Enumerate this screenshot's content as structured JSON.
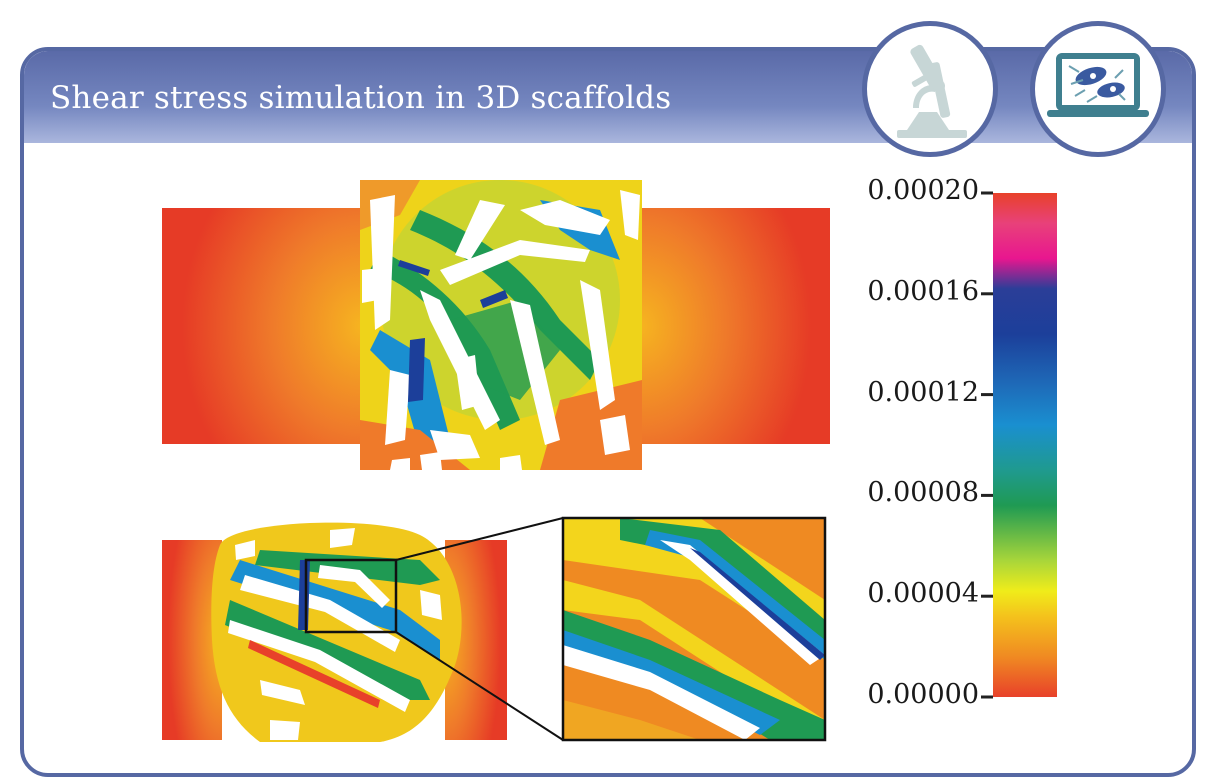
{
  "header": {
    "title": "Shear stress simulation in 3D scaffolds"
  },
  "badges": [
    {
      "icon": "microscope-icon",
      "color": "#c7d6d6"
    },
    {
      "icon": "laptop-cells-icon",
      "color": "#3f7f8f"
    }
  ],
  "colorbar": {
    "ticks": [
      {
        "label": "0.00020",
        "value": 0.0002
      },
      {
        "label": "0.00016",
        "value": 0.00016
      },
      {
        "label": "0.00012",
        "value": 0.00012
      },
      {
        "label": "0.00008",
        "value": 8e-05
      },
      {
        "label": "0.00004",
        "value": 4e-05
      },
      {
        "label": "0.00000",
        "value": 0
      }
    ],
    "range": [
      0,
      0.0002
    ],
    "colors": [
      "#e8412a",
      "#f08a22",
      "#f4c21c",
      "#f0ec1a",
      "#a9d63a",
      "#1f9a53",
      "#1f9a8f",
      "#1a8fd0",
      "#1e6ab8",
      "#1c3f9a",
      "#2b3e98",
      "#e8168f",
      "#e8417a",
      "#e8412a"
    ]
  },
  "colors": {
    "frame": "#5668a3",
    "header_top": "#5a6aa8",
    "header_bottom": "#aab6dd"
  }
}
